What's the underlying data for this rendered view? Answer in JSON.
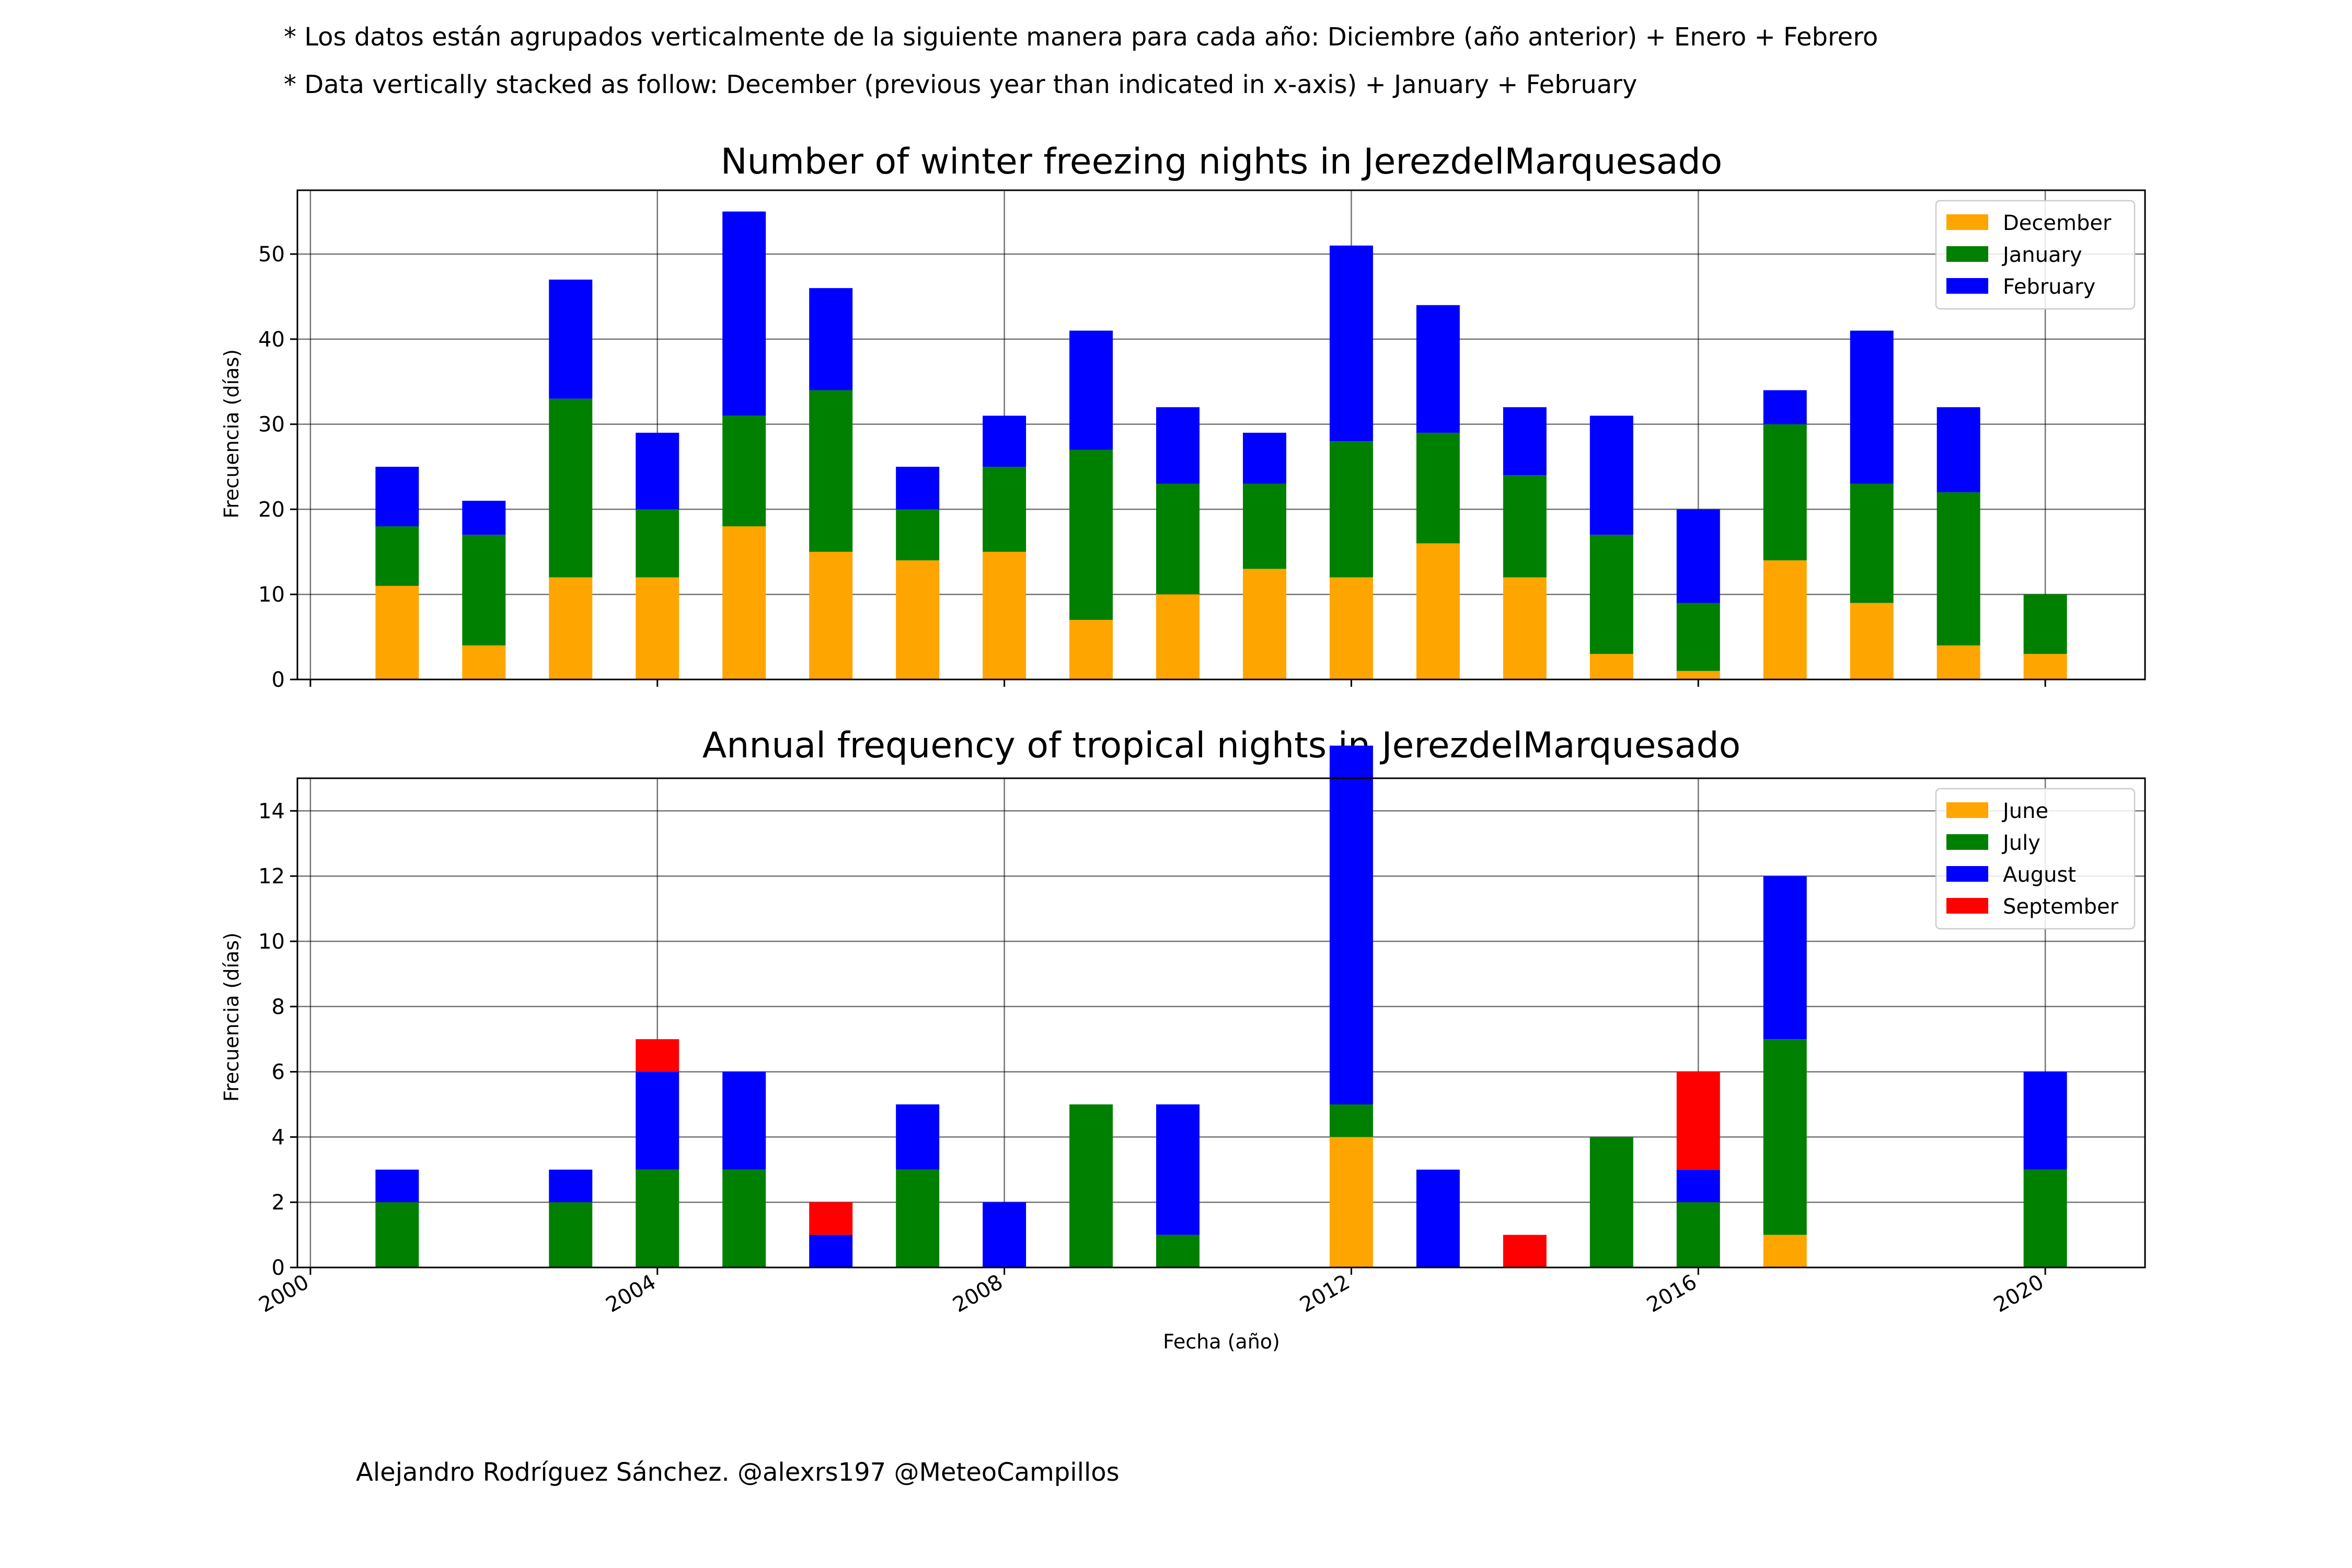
{
  "notes": [
    "* Los datos están agrupados verticalmente de la siguiente manera para cada año: Diciembre (año anterior) + Enero  + Febrero",
    "* Data vertically stacked as follow: December (previous year than indicated in x-axis) + January  + February"
  ],
  "credit": "Alejandro Rodríguez Sánchez. @alexrs197 @MeteoCampillos",
  "chart_data": [
    {
      "type": "bar",
      "stacked": true,
      "title": "Number of winter freezing nights in JerezdelMarquesado",
      "ylabel": "Frecuencia (días)",
      "xlabel": "",
      "xlim": [
        1999.85,
        2021.15
      ],
      "ylim": [
        0,
        57.5
      ],
      "x_ticks": [
        "2000",
        "2004",
        "2008",
        "2012",
        "2016",
        "2020"
      ],
      "y_ticks": [
        "0",
        "10",
        "20",
        "30",
        "40",
        "50"
      ],
      "grid": true,
      "legend_position": "top-right",
      "x": [
        2001,
        2002,
        2003,
        2004,
        2005,
        2006,
        2007,
        2008,
        2009,
        2010,
        2011,
        2012,
        2013,
        2014,
        2015,
        2016,
        2017,
        2018,
        2019,
        2020
      ],
      "series": [
        {
          "name": "December",
          "color": "#FFA500",
          "values": [
            11,
            4,
            12,
            12,
            18,
            15,
            14,
            15,
            7,
            10,
            13,
            12,
            16,
            12,
            3,
            1,
            14,
            9,
            4,
            3
          ]
        },
        {
          "name": "January",
          "color": "#008000",
          "values": [
            7,
            13,
            21,
            8,
            13,
            19,
            6,
            10,
            20,
            13,
            10,
            16,
            13,
            12,
            14,
            8,
            16,
            14,
            18,
            7
          ]
        },
        {
          "name": "February",
          "color": "#0000FF",
          "values": [
            7,
            4,
            14,
            9,
            24,
            12,
            5,
            6,
            14,
            9,
            6,
            23,
            15,
            8,
            14,
            11,
            4,
            18,
            10,
            0
          ]
        }
      ]
    },
    {
      "type": "bar",
      "stacked": true,
      "title": "Annual frequency of tropical nights in JerezdelMarquesado",
      "ylabel": "Frecuencia (días)",
      "xlabel": "Fecha (año)",
      "xlim": [
        1999.85,
        2021.15
      ],
      "ylim": [
        0,
        15
      ],
      "x_ticks": [
        "2000",
        "2004",
        "2008",
        "2012",
        "2016",
        "2020"
      ],
      "y_ticks": [
        "0",
        "2",
        "4",
        "6",
        "8",
        "10",
        "12",
        "14"
      ],
      "grid": true,
      "legend_position": "top-right",
      "x": [
        2001,
        2002,
        2003,
        2004,
        2005,
        2006,
        2007,
        2008,
        2009,
        2010,
        2011,
        2012,
        2013,
        2014,
        2015,
        2016,
        2017,
        2018,
        2019,
        2020
      ],
      "series": [
        {
          "name": "June",
          "color": "#FFA500",
          "values": [
            0,
            0,
            0,
            0,
            0,
            0,
            0,
            0,
            0,
            0,
            0,
            4,
            0,
            0,
            0,
            0,
            1,
            0,
            0,
            0
          ]
        },
        {
          "name": "July",
          "color": "#008000",
          "values": [
            2,
            0,
            2,
            3,
            3,
            0,
            3,
            0,
            5,
            1,
            0,
            1,
            0,
            0,
            4,
            2,
            6,
            0,
            0,
            3
          ]
        },
        {
          "name": "August",
          "color": "#0000FF",
          "values": [
            1,
            0,
            1,
            3,
            3,
            1,
            2,
            2,
            0,
            4,
            0,
            11,
            3,
            0,
            0,
            1,
            5,
            0,
            0,
            3
          ]
        },
        {
          "name": "September",
          "color": "#FF0000",
          "values": [
            0,
            0,
            0,
            1,
            0,
            1,
            0,
            0,
            0,
            0,
            0,
            0,
            0,
            1,
            0,
            3,
            0,
            0,
            0,
            0
          ]
        }
      ]
    }
  ]
}
